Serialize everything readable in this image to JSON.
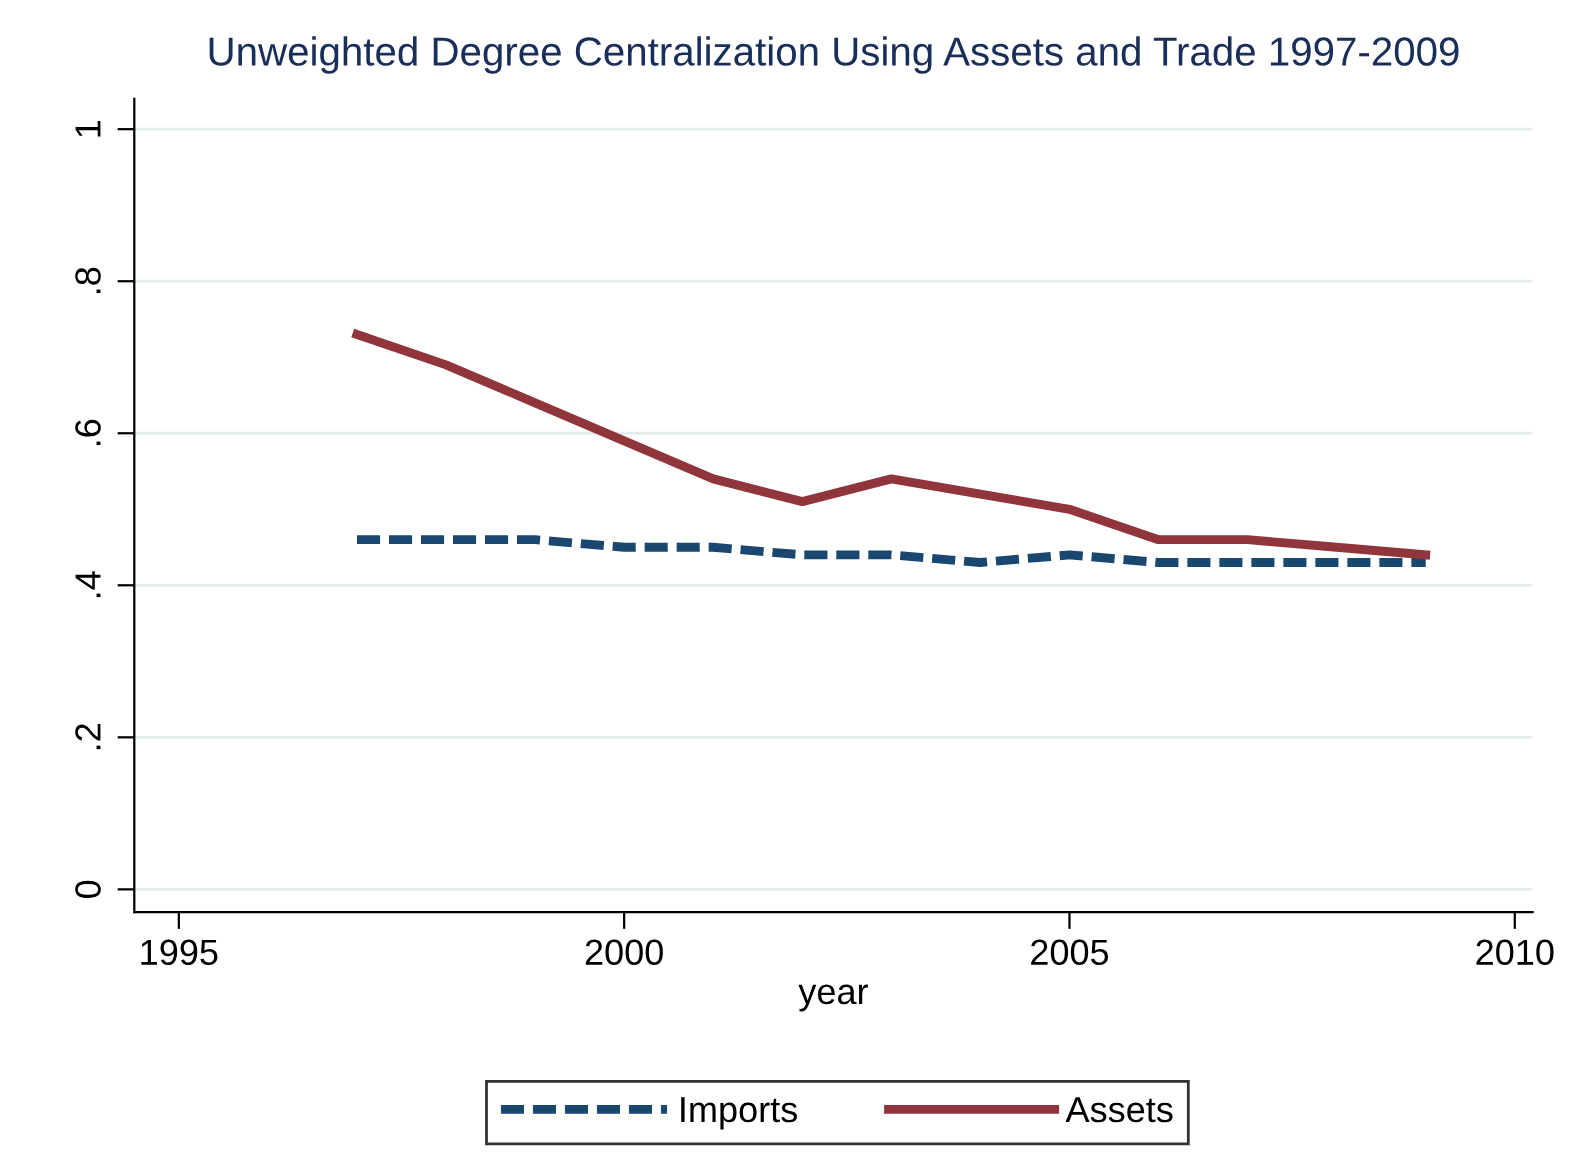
{
  "chart_data": {
    "type": "line",
    "title": "Unweighted Degree Centralization Using Assets and Trade 1997-2009",
    "xlabel": "year",
    "x": [
      1997,
      1998,
      1999,
      2000,
      2001,
      2002,
      2003,
      2004,
      2005,
      2006,
      2007,
      2008,
      2009
    ],
    "series": [
      {
        "name": "Imports",
        "color": "#1a476f",
        "line_style": "dashed",
        "values": [
          0.46,
          0.46,
          0.46,
          0.45,
          0.45,
          0.44,
          0.44,
          0.43,
          0.44,
          0.43,
          0.43,
          0.43,
          0.43
        ]
      },
      {
        "name": "Assets",
        "color": "#90353b",
        "line_style": "solid",
        "values": [
          0.73,
          0.69,
          0.64,
          0.59,
          0.54,
          0.51,
          0.54,
          0.52,
          0.5,
          0.46,
          0.46,
          0.45,
          0.44
        ]
      }
    ],
    "xlim": [
      1994.5,
      2010.2
    ],
    "xticks": [
      1995,
      2000,
      2005,
      2010
    ],
    "ylim": [
      -0.03,
      1.04
    ],
    "yticks": [
      0,
      {
        "value": 0.2,
        "label": ".2"
      },
      {
        "value": 0.4,
        "label": ".4"
      },
      {
        "value": 0.6,
        "label": ".6"
      },
      {
        "value": 0.8,
        "label": ".8"
      },
      1
    ],
    "grid": "y",
    "legend": "bottom",
    "marker": "none"
  }
}
